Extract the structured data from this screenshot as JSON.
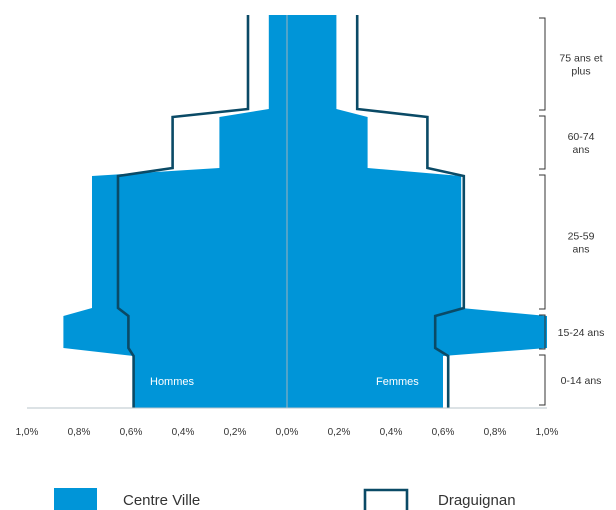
{
  "chart_data": {
    "type": "population-pyramid",
    "age_groups": [
      "0-14 ans",
      "15-24 ans",
      "25-59 ans",
      "60-74 ans",
      "75 ans et plus"
    ],
    "age_group_label_lines": [
      [
        "0-14 ans"
      ],
      [
        "15-24 ans"
      ],
      [
        "25-59",
        "ans"
      ],
      [
        "60-74",
        "ans"
      ],
      [
        "75 ans et",
        "plus"
      ]
    ],
    "side_labels": {
      "left": "Hommes",
      "right": "Femmes"
    },
    "x_ticks": [
      "1,0%",
      "0,8%",
      "0,6%",
      "0,4%",
      "0,2%",
      "0,0%",
      "0,2%",
      "0,4%",
      "0,6%",
      "0,8%",
      "1,0%"
    ],
    "xlim": [
      -1.0,
      1.0
    ],
    "series": [
      {
        "name": "Centre Ville",
        "style": "filled",
        "color": "#0095d8",
        "men": [
          0.59,
          0.86,
          0.75,
          0.26,
          0.07
        ],
        "women": [
          0.6,
          1.0,
          0.67,
          0.31,
          0.19
        ]
      },
      {
        "name": "Draguignan",
        "style": "outline",
        "color": "#0a4a66",
        "men": [
          0.59,
          0.61,
          0.65,
          0.44,
          0.15
        ],
        "women": [
          0.62,
          0.57,
          0.68,
          0.54,
          0.27
        ]
      }
    ],
    "legend": [
      {
        "label": "Centre Ville",
        "swatch": "filled"
      },
      {
        "label": "Draguignan",
        "swatch": "outline"
      }
    ],
    "legend_position": "bottom"
  }
}
